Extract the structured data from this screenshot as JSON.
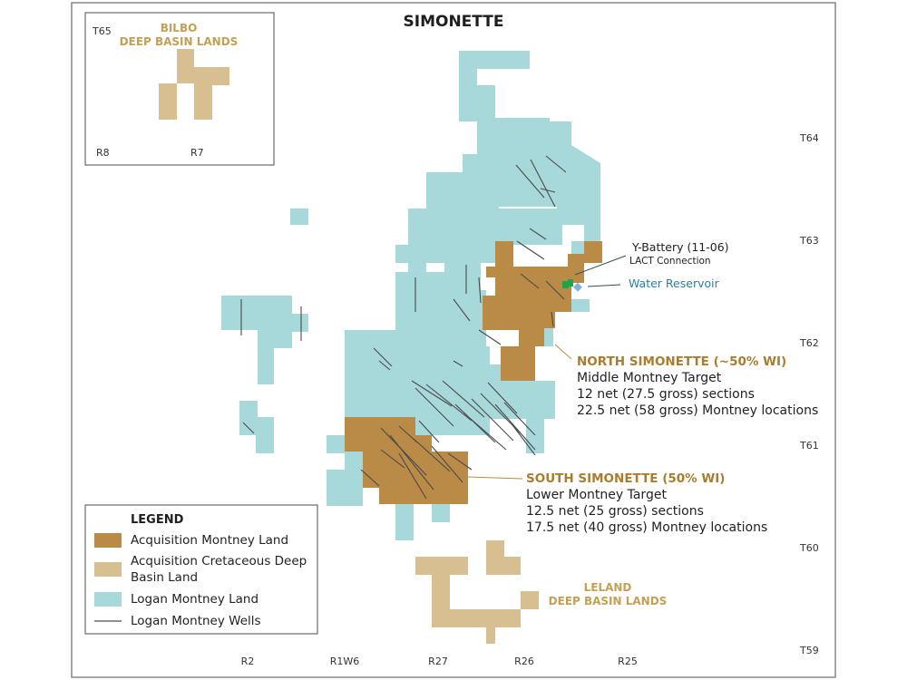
{
  "map": {
    "title": "SIMONETTE",
    "colors": {
      "logan_land": "#a7d8da",
      "acq_montney": "#b98b47",
      "acq_cretaceous": "#d8bf92",
      "well": "#4a4a4a",
      "gold_text": "#a87d2e",
      "teal_text": "#2a7fa6",
      "tag_green": "#22a24a",
      "tag_blue": "#7fb2d6"
    }
  },
  "inset": {
    "title_line1": "BILBO",
    "title_line2": "DEEP BASIN LANDS",
    "township": "T65",
    "range_left": "R8",
    "range_right": "R7"
  },
  "townships": [
    "T64",
    "T63",
    "T62",
    "T61",
    "T60",
    "T59"
  ],
  "ranges": [
    "R2",
    "R1W6",
    "R27",
    "R26",
    "R25"
  ],
  "callouts": {
    "y_battery": "Y-Battery (11-06)",
    "lact": "LACT Connection",
    "water_reservoir": "Water Reservoir"
  },
  "north": {
    "title": "NORTH SIMONETTE (~50% WI)",
    "line1": "Middle Montney Target",
    "line2": "12 net (27.5 gross) sections",
    "line3": "22.5 net (58 gross) Montney locations"
  },
  "south": {
    "title": "SOUTH SIMONETTE (50% WI)",
    "line1": "Lower Montney Target",
    "line2": "12.5 net (25 gross) sections",
    "line3": "17.5 net (40 gross) Montney locations"
  },
  "leland": {
    "line1": "LELAND",
    "line2": "DEEP BASIN LANDS"
  },
  "legend": {
    "title": "LEGEND",
    "items": [
      {
        "label": "Acquisition Montney Land",
        "icon": "swatch-dark-gold"
      },
      {
        "label_line1": "Acquisition Cretaceous Deep",
        "label_line2": "Basin Land",
        "icon": "swatch-light-tan"
      },
      {
        "label": "Logan Montney Land",
        "icon": "swatch-light-teal"
      },
      {
        "label": "Logan Montney Wells",
        "icon": "line-gray"
      }
    ]
  }
}
